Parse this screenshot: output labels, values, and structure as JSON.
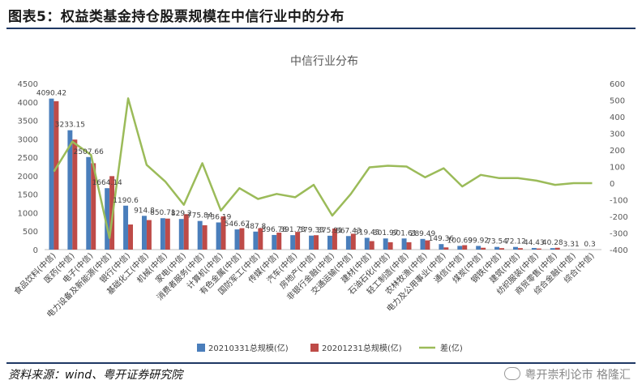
{
  "figure": {
    "title": "图表5：权益类基金持仓股票规模在中信行业中的分布",
    "source": "资料来源：wind、粤开证券研究院",
    "watermark": "粤开崇利论市  格隆汇"
  },
  "chart_data": {
    "type": "bar",
    "title": "中信行业分布",
    "categories": [
      "食品饮料(中信)",
      "医药(中信)",
      "电子(中信)",
      "电力设备及新能源(中信)",
      "银行(中信)",
      "基础化工(中信)",
      "机械(中信)",
      "家电(中信)",
      "消费者服务(中信)",
      "计算机(中信)",
      "有色金属(中信)",
      "国防军工(中信)",
      "传媒(中信)",
      "汽车(中信)",
      "房地产(中信)",
      "非银行金融(中信)",
      "交通运输(中信)",
      "建材(中信)",
      "石油石化(中信)",
      "轻工制造(中信)",
      "农林牧渔(中信)",
      "电力及公用事业(中信)",
      "通信(中信)",
      "煤炭(中信)",
      "钢铁(中信)",
      "建筑(中信)",
      "纺织服装(中信)",
      "商贸零售(中信)",
      "综合金融(中信)",
      "综合(中信)"
    ],
    "series": [
      {
        "name": "20210331总规模(亿)",
        "type": "bar",
        "color": "#4a7ebb",
        "axis": "left",
        "values": [
          4090.42,
          3233.15,
          2507.66,
          1664.14,
          1190.6,
          914.8,
          850.71,
          829.2,
          775.84,
          736.19,
          546.67,
          487.8,
          396.78,
          391.73,
          379.33,
          375.91,
          367.43,
          319.43,
          301.97,
          301.61,
          289.49,
          149.36,
          100.69,
          99.92,
          73.54,
          72.12,
          44.43,
          40.28,
          3.31,
          0.3
        ]
      },
      {
        "name": "20201231总规模(亿)",
        "type": "bar",
        "color": "#be4b48",
        "axis": "left",
        "values": [
          4020,
          2980,
          2340,
          1990,
          680,
          800,
          840,
          960,
          660,
          900,
          580,
          580,
          460,
          480,
          390,
          570,
          430,
          230,
          200,
          200,
          250,
          60,
          120,
          50,
          40,
          40,
          30,
          50,
          0,
          0
        ]
      },
      {
        "name": "差(亿)",
        "type": "line",
        "color": "#9bbb59",
        "axis": "right",
        "values": [
          70,
          250,
          170,
          -330,
          510,
          110,
          10,
          -130,
          120,
          -165,
          -30,
          -95,
          -65,
          -85,
          -10,
          -195,
          -65,
          95,
          105,
          100,
          35,
          90,
          -20,
          50,
          30,
          30,
          15,
          -10,
          0,
          0
        ]
      }
    ],
    "data_labels": [
      "4090.42",
      "3233.15",
      "2507.66",
      "1664.14",
      "1190.6",
      "914.8",
      "850.71",
      "829.2",
      "775.84",
      "736.19",
      "546.67",
      "487.8",
      "396.78",
      "391.73",
      "379.33",
      "375.91",
      "367.43",
      "319.43",
      "301.97",
      "301.61",
      "289.49",
      "149.36",
      "100.69",
      "99.92",
      "73.54",
      "72.12",
      "44.43",
      "40.28",
      "3.31",
      "0.3"
    ],
    "ylim_left": [
      0,
      4500
    ],
    "ylim_right": [
      -400,
      600
    ],
    "yticks_left": [
      "0",
      "500",
      "1000",
      "1500",
      "2000",
      "2500",
      "3000",
      "3500",
      "4000",
      "4500"
    ],
    "yticks_right": [
      "-400",
      "-300",
      "-200",
      "-100",
      "0",
      "100",
      "200",
      "300",
      "400",
      "500",
      "600"
    ],
    "grid": false,
    "legend_position": "bottom"
  }
}
